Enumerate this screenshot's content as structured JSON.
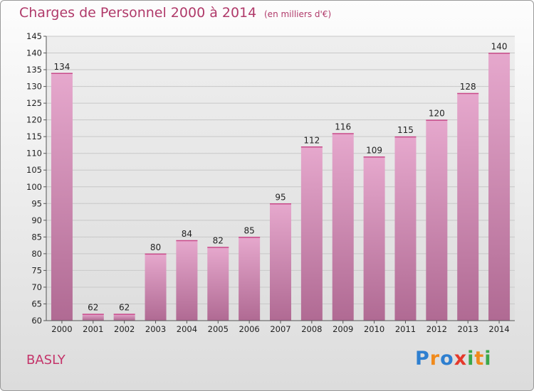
{
  "header": {
    "title": "Charges de Personnel 2000 à 2014",
    "subtitle": "(en milliers d'€)"
  },
  "footer": {
    "commune": "BASLY",
    "logo_text": "Proxiti",
    "logo_letters": [
      {
        "char": "P",
        "color": "#2e7fd0"
      },
      {
        "char": "r",
        "color": "#f08a1c"
      },
      {
        "char": "o",
        "color": "#2e7fd0"
      },
      {
        "char": "x",
        "color": "#e5392b"
      },
      {
        "char": "i",
        "color": "#3aa84a"
      },
      {
        "char": "t",
        "color": "#f08a1c"
      },
      {
        "char": "i",
        "color": "#3aa84a"
      }
    ]
  },
  "colors": {
    "bar_top": "#e6a8cd",
    "bar_bottom": "#b06a93",
    "grid": "#c8c8c8",
    "axis_text": "#222222",
    "title": "#b03a6a"
  },
  "chart_data": {
    "type": "bar",
    "categories": [
      "2000",
      "2001",
      "2002",
      "2003",
      "2004",
      "2005",
      "2006",
      "2007",
      "2008",
      "2009",
      "2010",
      "2011",
      "2012",
      "2013",
      "2014"
    ],
    "values": [
      134,
      62,
      62,
      80,
      84,
      82,
      85,
      95,
      112,
      116,
      109,
      115,
      120,
      128,
      140
    ],
    "ylim": [
      60,
      145
    ],
    "yticks": [
      60,
      65,
      70,
      75,
      80,
      85,
      90,
      95,
      100,
      105,
      110,
      115,
      120,
      125,
      130,
      135,
      140,
      145
    ],
    "grid": true,
    "data_labels": true
  }
}
